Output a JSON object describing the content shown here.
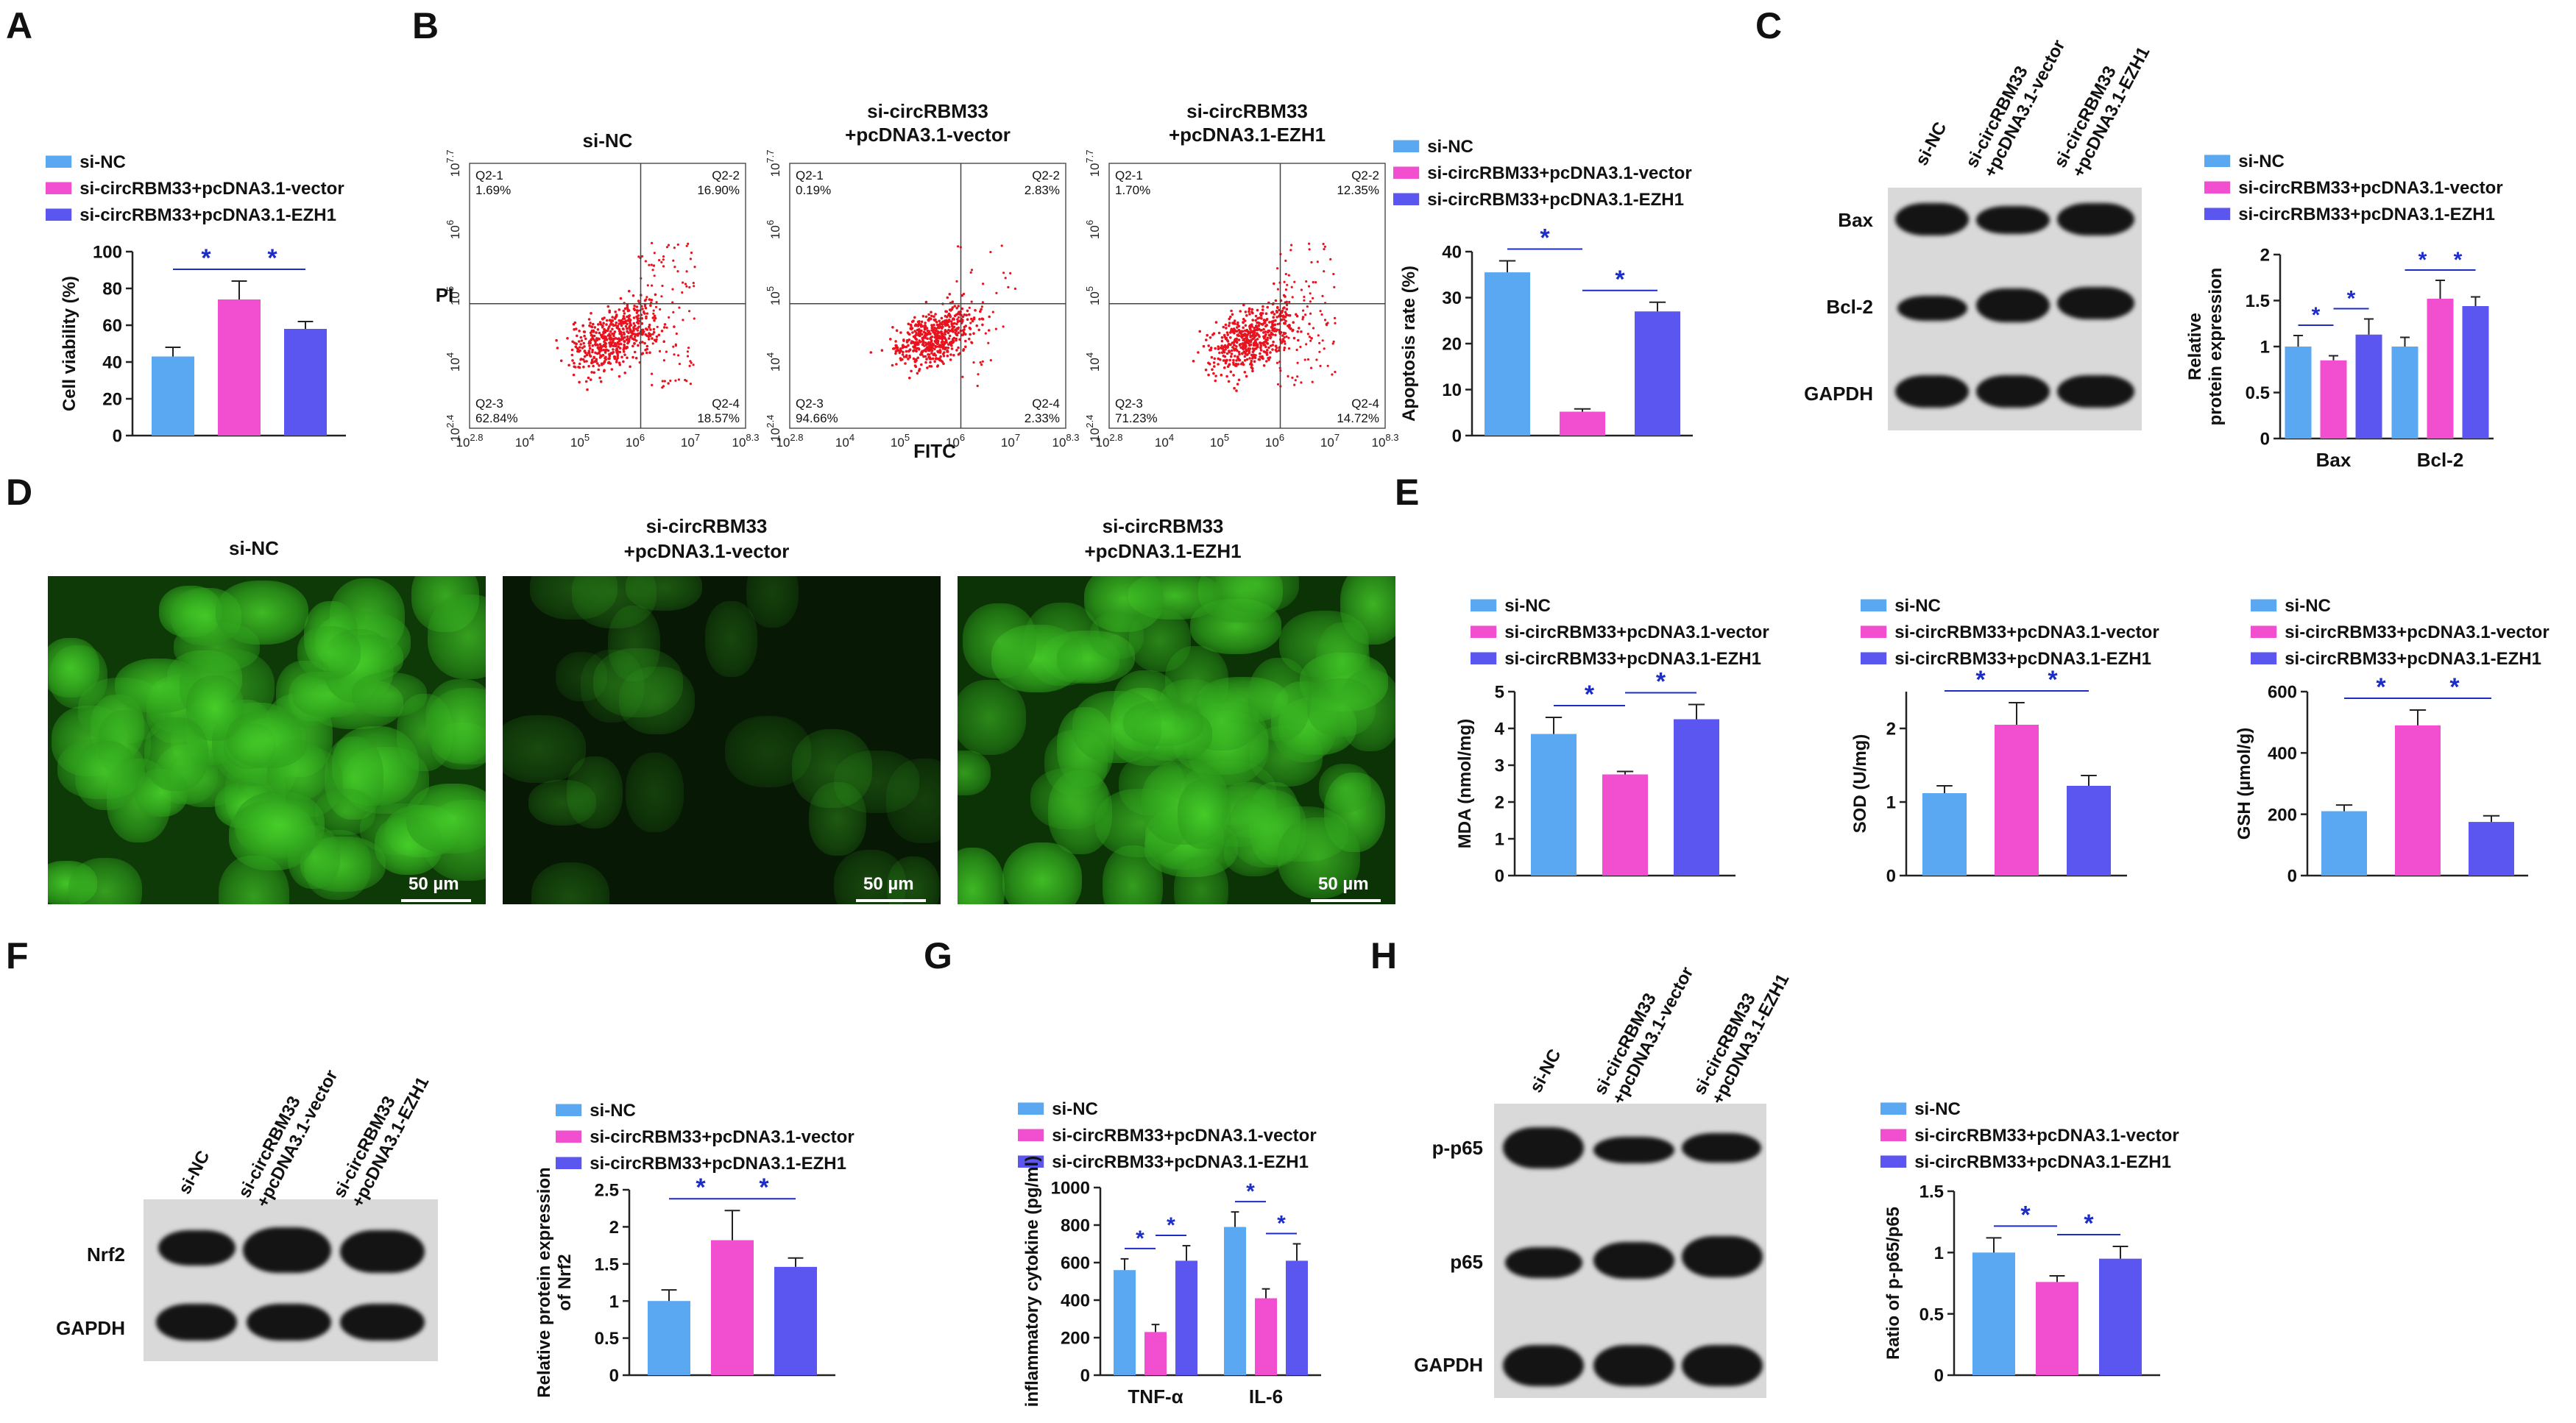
{
  "colors": {
    "si_nc": "#5aa7f2",
    "vector": "#f24fd0",
    "ezh1": "#5b56f0",
    "sig": "#1b2cc9",
    "axis": "#222222",
    "scatter": "#e8131f",
    "fluor": "#48d12a"
  },
  "legend_labels": [
    "si-NC",
    "si-circRBM33+pcDNA3.1-vector",
    "si-circRBM33+pcDNA3.1-EZH1"
  ],
  "panel_letters": {
    "A": "A",
    "B": "B",
    "C": "C",
    "D": "D",
    "E": "E",
    "F": "F",
    "G": "G",
    "H": "H"
  },
  "sig_symbol": "*",
  "flow": {
    "xaxis_label": "FITC",
    "yaxis_label": "PI",
    "x_ticks": [
      "10^2.8",
      "10^4",
      "10^5",
      "10^6",
      "10^7",
      "10^8.3"
    ],
    "y_ticks": [
      "10^2.4",
      "10^4",
      "10^5",
      "10^6",
      "10^7.7"
    ],
    "quad_names": [
      "Q2-1",
      "Q2-2",
      "Q2-3",
      "Q2-4"
    ],
    "plots": [
      {
        "title": [
          "si-NC"
        ],
        "q1": "1.69%",
        "q2": "16.90%",
        "q3": "62.84%",
        "q4": "18.57%"
      },
      {
        "title": [
          "si-circRBM33",
          "+pcDNA3.1-vector"
        ],
        "q1": "0.19%",
        "q2": "2.83%",
        "q3": "94.66%",
        "q4": "2.33%"
      },
      {
        "title": [
          "si-circRBM33",
          "+pcDNA3.1-EZH1"
        ],
        "q1": "1.70%",
        "q2": "12.35%",
        "q3": "71.23%",
        "q4": "14.72%"
      }
    ]
  },
  "fluor": {
    "titles": [
      [
        "si-NC"
      ],
      [
        "si-circRBM33",
        "+pcDNA3.1-vector"
      ],
      [
        "si-circRBM33",
        "+pcDNA3.1-EZH1"
      ]
    ],
    "scale": "50 µm"
  },
  "blots": {
    "C": {
      "lanes": [
        "si-NC",
        "si-circRBM33\n+pcDNA3.1-vector",
        "si-circRBM33\n+pcDNA3.1-EZH1"
      ],
      "rows": [
        "Bax",
        "Bcl-2",
        "GAPDH"
      ]
    },
    "F": {
      "lanes": [
        "si-NC",
        "si-circRBM33\n+pcDNA3.1-vector",
        "si-circRBM33\n+pcDNA3.1-EZH1"
      ],
      "rows": [
        "Nrf2",
        "GAPDH"
      ]
    },
    "H": {
      "lanes": [
        "si-NC",
        "si-circRBM33\n+pcDNA3.1-vector",
        "si-circRBM33\n+pcDNA3.1-EZH1"
      ],
      "rows": [
        "p-p65",
        "p65",
        "GAPDH"
      ]
    }
  },
  "chart_data": [
    {
      "panel": "A",
      "type": "bar",
      "ylabel": "Cell viability (%)",
      "ylim": [
        0,
        100
      ],
      "yticks": [
        0,
        20,
        40,
        60,
        80,
        100
      ],
      "categories": [
        ""
      ],
      "series": [
        {
          "name": "si-NC",
          "values": [
            43
          ],
          "err": [
            5
          ]
        },
        {
          "name": "si-circRBM33+pcDNA3.1-vector",
          "values": [
            74
          ],
          "err": [
            10
          ]
        },
        {
          "name": "si-circRBM33+pcDNA3.1-EZH1",
          "values": [
            58
          ],
          "err": [
            4
          ]
        }
      ],
      "sig": [
        [
          0,
          1
        ],
        [
          1,
          2
        ]
      ]
    },
    {
      "panel": "B",
      "type": "bar",
      "ylabel": "Apoptosis rate (%)",
      "ylim": [
        0,
        40
      ],
      "yticks": [
        0,
        10,
        20,
        30,
        40
      ],
      "categories": [
        ""
      ],
      "series": [
        {
          "name": "si-NC",
          "values": [
            35.5
          ],
          "err": [
            2.5
          ]
        },
        {
          "name": "si-circRBM33+pcDNA3.1-vector",
          "values": [
            5.2
          ],
          "err": [
            0.6
          ]
        },
        {
          "name": "si-circRBM33+pcDNA3.1-EZH1",
          "values": [
            27
          ],
          "err": [
            2
          ]
        }
      ],
      "sig": [
        [
          0,
          1
        ],
        [
          1,
          2
        ]
      ]
    },
    {
      "panel": "C",
      "type": "bar",
      "ylabel": [
        "Relative",
        "protein expression"
      ],
      "ylim": [
        0,
        2.0
      ],
      "yticks": [
        0,
        0.5,
        1.0,
        1.5,
        2.0
      ],
      "categories": [
        "Bax",
        "Bcl-2"
      ],
      "series": [
        {
          "name": "si-NC",
          "values": [
            1.0,
            1.0
          ],
          "err": [
            0.12,
            0.1
          ]
        },
        {
          "name": "si-circRBM33+pcDNA3.1-vector",
          "values": [
            0.85,
            1.52
          ],
          "err": [
            0.05,
            0.2
          ]
        },
        {
          "name": "si-circRBM33+pcDNA3.1-EZH1",
          "values": [
            1.13,
            1.44
          ],
          "err": [
            0.17,
            0.1
          ]
        }
      ],
      "sig": [
        [
          0,
          1
        ],
        [
          1,
          2
        ]
      ]
    },
    {
      "panel": "E1",
      "type": "bar",
      "ylabel": "MDA (nmol/mg)",
      "ylim": [
        0,
        5
      ],
      "yticks": [
        0,
        1,
        2,
        3,
        4,
        5
      ],
      "categories": [
        ""
      ],
      "series": [
        {
          "name": "si-NC",
          "values": [
            3.85
          ],
          "err": [
            0.45
          ]
        },
        {
          "name": "si-circRBM33+pcDNA3.1-vector",
          "values": [
            2.75
          ],
          "err": [
            0.08
          ]
        },
        {
          "name": "si-circRBM33+pcDNA3.1-EZH1",
          "values": [
            4.25
          ],
          "err": [
            0.4
          ]
        }
      ],
      "sig": [
        [
          0,
          1
        ],
        [
          1,
          2
        ]
      ]
    },
    {
      "panel": "E2",
      "type": "bar",
      "ylabel": "SOD (U/mg)",
      "ylim": [
        0,
        2.5
      ],
      "yticks": [
        0,
        1,
        2
      ],
      "categories": [
        ""
      ],
      "series": [
        {
          "name": "si-NC",
          "values": [
            1.12
          ],
          "err": [
            0.1
          ]
        },
        {
          "name": "si-circRBM33+pcDNA3.1-vector",
          "values": [
            2.05
          ],
          "err": [
            0.3
          ]
        },
        {
          "name": "si-circRBM33+pcDNA3.1-EZH1",
          "values": [
            1.22
          ],
          "err": [
            0.14
          ]
        }
      ],
      "sig": [
        [
          0,
          1
        ],
        [
          1,
          2
        ]
      ]
    },
    {
      "panel": "E3",
      "type": "bar",
      "ylabel": "GSH (µmol/g)",
      "ylim": [
        0,
        600
      ],
      "yticks": [
        0,
        200,
        400,
        600
      ],
      "categories": [
        ""
      ],
      "series": [
        {
          "name": "si-NC",
          "values": [
            210
          ],
          "err": [
            20
          ]
        },
        {
          "name": "si-circRBM33+pcDNA3.1-vector",
          "values": [
            490
          ],
          "err": [
            50
          ]
        },
        {
          "name": "si-circRBM33+pcDNA3.1-EZH1",
          "values": [
            175
          ],
          "err": [
            20
          ]
        }
      ],
      "sig": [
        [
          0,
          1
        ],
        [
          1,
          2
        ]
      ]
    },
    {
      "panel": "F",
      "type": "bar",
      "ylabel": [
        "Relative protein expression",
        "of Nrf2"
      ],
      "ylim": [
        0,
        2.5
      ],
      "yticks": [
        0,
        0.5,
        1.0,
        1.5,
        2.0,
        2.5
      ],
      "categories": [
        ""
      ],
      "series": [
        {
          "name": "si-NC",
          "values": [
            1.0
          ],
          "err": [
            0.15
          ]
        },
        {
          "name": "si-circRBM33+pcDNA3.1-vector",
          "values": [
            1.82
          ],
          "err": [
            0.4
          ]
        },
        {
          "name": "si-circRBM33+pcDNA3.1-EZH1",
          "values": [
            1.46
          ],
          "err": [
            0.12
          ]
        }
      ],
      "sig": [
        [
          0,
          1
        ],
        [
          1,
          2
        ]
      ]
    },
    {
      "panel": "G",
      "type": "bar",
      "ylabel": "inflammatory cytokine (pg/ml)",
      "ylim": [
        0,
        1000
      ],
      "yticks": [
        0,
        200,
        400,
        600,
        800,
        1000
      ],
      "categories": [
        "TNF-α",
        "IL-6"
      ],
      "series": [
        {
          "name": "si-NC",
          "values": [
            560,
            790
          ],
          "err": [
            60,
            80
          ]
        },
        {
          "name": "si-circRBM33+pcDNA3.1-vector",
          "values": [
            230,
            410
          ],
          "err": [
            40,
            50
          ]
        },
        {
          "name": "si-circRBM33+pcDNA3.1-EZH1",
          "values": [
            610,
            610
          ],
          "err": [
            80,
            90
          ]
        }
      ],
      "sig": [
        [
          0,
          1
        ],
        [
          1,
          2
        ]
      ]
    },
    {
      "panel": "H",
      "type": "bar",
      "ylabel": "Ratio of p-p65/p65",
      "ylim": [
        0,
        1.5
      ],
      "yticks": [
        0,
        0.5,
        1.0,
        1.5
      ],
      "categories": [
        ""
      ],
      "series": [
        {
          "name": "si-NC",
          "values": [
            1.0
          ],
          "err": [
            0.12
          ]
        },
        {
          "name": "si-circRBM33+pcDNA3.1-vector",
          "values": [
            0.76
          ],
          "err": [
            0.05
          ]
        },
        {
          "name": "si-circRBM33+pcDNA3.1-EZH1",
          "values": [
            0.95
          ],
          "err": [
            0.1
          ]
        }
      ],
      "sig": [
        [
          0,
          1
        ],
        [
          1,
          2
        ]
      ]
    }
  ]
}
